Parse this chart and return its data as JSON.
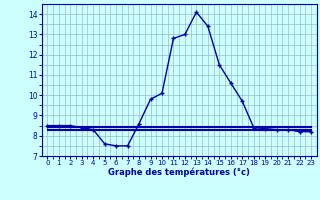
{
  "hours": [
    0,
    1,
    2,
    3,
    4,
    5,
    6,
    7,
    8,
    9,
    10,
    11,
    12,
    13,
    14,
    15,
    16,
    17,
    18,
    19,
    20,
    21,
    22,
    23
  ],
  "temp_main": [
    8.5,
    8.5,
    8.5,
    8.4,
    8.3,
    7.6,
    7.5,
    7.5,
    8.6,
    9.8,
    10.1,
    12.8,
    13.0,
    14.1,
    13.4,
    11.5,
    10.6,
    9.7,
    8.4,
    8.35,
    8.3,
    8.3,
    8.2,
    8.2
  ],
  "temp_flat1": [
    8.5,
    8.5,
    8.5,
    8.5,
    8.5,
    8.5,
    8.5,
    8.5,
    8.5,
    8.5,
    8.5,
    8.5,
    8.5,
    8.5,
    8.5,
    8.5,
    8.5,
    8.5,
    8.5,
    8.5,
    8.5,
    8.5,
    8.5,
    8.5
  ],
  "temp_flat2": [
    8.42,
    8.42,
    8.42,
    8.42,
    8.42,
    8.42,
    8.42,
    8.42,
    8.42,
    8.42,
    8.42,
    8.42,
    8.42,
    8.42,
    8.42,
    8.42,
    8.42,
    8.42,
    8.42,
    8.42,
    8.42,
    8.42,
    8.42,
    8.42
  ],
  "temp_flat3": [
    8.35,
    8.35,
    8.35,
    8.35,
    8.35,
    8.35,
    8.35,
    8.35,
    8.35,
    8.35,
    8.35,
    8.35,
    8.35,
    8.35,
    8.35,
    8.35,
    8.35,
    8.35,
    8.35,
    8.35,
    8.35,
    8.35,
    8.35,
    8.35
  ],
  "temp_flat4": [
    8.28,
    8.28,
    8.28,
    8.28,
    8.28,
    8.28,
    8.28,
    8.28,
    8.28,
    8.28,
    8.28,
    8.28,
    8.28,
    8.28,
    8.28,
    8.28,
    8.28,
    8.28,
    8.28,
    8.28,
    8.28,
    8.28,
    8.28,
    8.28
  ],
  "line_color": "#0000aa",
  "bg_color": "#ccffff",
  "grid_color": "#99bbcc",
  "xlabel": "Graphe des températures (°c)",
  "xlim": [
    -0.5,
    23.5
  ],
  "ylim": [
    7.0,
    14.5
  ],
  "yticks": [
    7,
    8,
    9,
    10,
    11,
    12,
    13,
    14
  ],
  "xticks": [
    0,
    1,
    2,
    3,
    4,
    5,
    6,
    7,
    8,
    9,
    10,
    11,
    12,
    13,
    14,
    15,
    16,
    17,
    18,
    19,
    20,
    21,
    22,
    23
  ]
}
